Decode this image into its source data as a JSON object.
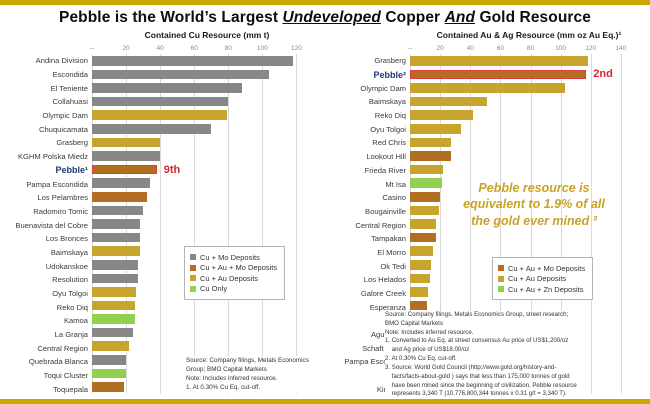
{
  "header": {
    "title_parts": {
      "p1": "Pebble is the World’s Largest ",
      "u1": "Undeveloped",
      "p2": " Copper ",
      "u2": "And",
      "p3": " Gold Resource"
    }
  },
  "colors": {
    "cu_mo": "#878787",
    "cu_au_mo": "#B26F21",
    "cu_au": "#C7A42E",
    "cu_only": "#92D050",
    "cu_au_zn": "#92D050",
    "highlight_border": "#E23B3E",
    "rank_red": "#D9262C",
    "pebble_blue": "#1F3A70",
    "band_gold": "#C9A804",
    "annotation_gold": "#C9A227"
  },
  "chart_data": [
    {
      "type": "bar",
      "orientation": "horizontal",
      "title": "Contained Cu Resource (mm t)",
      "xlabel": "Contained Cu Resource (mm t)",
      "ticks": [
        "--",
        "20",
        "40",
        "60",
        "80",
        "100",
        "120"
      ],
      "tick_values": [
        0,
        20,
        40,
        60,
        80,
        100,
        120
      ],
      "axis_span": 135,
      "items": [
        {
          "label": "Andina Division",
          "value": 118,
          "type": "cu_mo"
        },
        {
          "label": "Escondida",
          "value": 104,
          "type": "cu_mo"
        },
        {
          "label": "El Teniente",
          "value": 88,
          "type": "cu_mo"
        },
        {
          "label": "Collahuasi",
          "value": 80,
          "type": "cu_mo"
        },
        {
          "label": "Olympic Dam",
          "value": 79,
          "type": "cu_au"
        },
        {
          "label": "Chuquicamata",
          "value": 70,
          "type": "cu_mo"
        },
        {
          "label": "Grasberg",
          "value": 40,
          "type": "cu_au"
        },
        {
          "label": "KGHM Polska Miedz",
          "value": 40,
          "type": "cu_mo"
        },
        {
          "label": "Pebble¹",
          "value": 38,
          "type": "cu_au_mo",
          "highlight": true,
          "rank": "9th"
        },
        {
          "label": "Pampa Escondida",
          "value": 34,
          "type": "cu_mo"
        },
        {
          "label": "Los Pelambres",
          "value": 32,
          "type": "cu_au_mo"
        },
        {
          "label": "Radomiro Tomic",
          "value": 30,
          "type": "cu_mo"
        },
        {
          "label": "Buenavista del Cobre",
          "value": 28,
          "type": "cu_mo"
        },
        {
          "label": "Los Bronces",
          "value": 28,
          "type": "cu_mo"
        },
        {
          "label": "Baimskaya",
          "value": 28,
          "type": "cu_au"
        },
        {
          "label": "Udokanskoe",
          "value": 27,
          "type": "cu_mo"
        },
        {
          "label": "Resolution",
          "value": 27,
          "type": "cu_mo"
        },
        {
          "label": "Oyu Tolgoi",
          "value": 26,
          "type": "cu_au"
        },
        {
          "label": "Reko Diq",
          "value": 25,
          "type": "cu_au"
        },
        {
          "label": "Kamoa",
          "value": 25,
          "type": "cu_only"
        },
        {
          "label": "La Granja",
          "value": 24,
          "type": "cu_mo"
        },
        {
          "label": "Central Region",
          "value": 22,
          "type": "cu_au"
        },
        {
          "label": "Quebrada Blanca",
          "value": 20,
          "type": "cu_mo"
        },
        {
          "label": "Toqui Cluster",
          "value": 20,
          "type": "cu_only"
        },
        {
          "label": "Toquepala",
          "value": 19,
          "type": "cu_au_mo"
        }
      ],
      "legend": [
        {
          "label": "Cu + Mo Deposits",
          "type": "cu_mo"
        },
        {
          "label": "Cu + Au + Mo Deposits",
          "type": "cu_au_mo"
        },
        {
          "label": "Cu + Au Deposits",
          "type": "cu_au"
        },
        {
          "label": "Cu Only",
          "type": "cu_only"
        }
      ],
      "source_note": "Source: Company filings, Metals Economics\nGroup; BMO Capital Markets\nNote: Includes inferred resource.\n1. At 0.30% Cu Eq. cut-off."
    },
    {
      "type": "bar",
      "orientation": "horizontal",
      "title": "Contained Au & Ag Resource (mm oz Au Eq.)¹",
      "xlabel": "Contained Au & Ag Resource (mm oz Au Eq.)¹",
      "ticks": [
        "--",
        "20",
        "40",
        "60",
        "80",
        "100",
        "120",
        "140"
      ],
      "tick_values": [
        0,
        20,
        40,
        60,
        80,
        100,
        120,
        140
      ],
      "axis_span": 158,
      "items": [
        {
          "label": "Grasberg",
          "value": 118,
          "type": "cu_au"
        },
        {
          "label": "Pebble²",
          "value": 117,
          "type": "cu_au_mo",
          "highlight": true,
          "rank": "2nd"
        },
        {
          "label": "Olympic Dam",
          "value": 103,
          "type": "cu_au"
        },
        {
          "label": "Baimskaya",
          "value": 51,
          "type": "cu_au"
        },
        {
          "label": "Reko Diq",
          "value": 42,
          "type": "cu_au"
        },
        {
          "label": "Oyu Tolgoi",
          "value": 34,
          "type": "cu_au"
        },
        {
          "label": "Red Chris",
          "value": 27,
          "type": "cu_au"
        },
        {
          "label": "Lookout Hill",
          "value": 27,
          "type": "cu_au_mo"
        },
        {
          "label": "Frieda River",
          "value": 22,
          "type": "cu_au"
        },
        {
          "label": "Mt Isa",
          "value": 21,
          "type": "cu_au_zn"
        },
        {
          "label": "Casino",
          "value": 20,
          "type": "cu_au_mo"
        },
        {
          "label": "Bougainville",
          "value": 19,
          "type": "cu_au"
        },
        {
          "label": "Central Region",
          "value": 17,
          "type": "cu_au"
        },
        {
          "label": "Tampakan",
          "value": 17,
          "type": "cu_au_mo"
        },
        {
          "label": "El Morro",
          "value": 15,
          "type": "cu_au"
        },
        {
          "label": "Ok Tedi",
          "value": 14,
          "type": "cu_au"
        },
        {
          "label": "Los Helados",
          "value": 13,
          "type": "cu_au"
        },
        {
          "label": "Galore Creek",
          "value": 12,
          "type": "cu_au"
        },
        {
          "label": "Esperanza",
          "value": 11,
          "type": "cu_au_mo"
        },
        {
          "label": "Aitik",
          "value": 11,
          "type": "cu_au"
        },
        {
          "label": "Agua Rica",
          "value": 10.5,
          "type": "cu_au_mo"
        },
        {
          "label": "Schaft Creek",
          "value": 11,
          "type": "cu_au_mo"
        },
        {
          "label": "Pampa Escondida",
          "value": 10,
          "type": "cu_au"
        },
        {
          "label": "Jiama",
          "value": 10,
          "type": "cu_au"
        },
        {
          "label": "Kingking",
          "value": 9,
          "type": "cu_au"
        }
      ],
      "legend": [
        {
          "label": "Cu + Au + Mo Deposits",
          "type": "cu_au_mo"
        },
        {
          "label": "Cu + Au Deposits",
          "type": "cu_au"
        },
        {
          "label": "Cu + Au + Zn Deposits",
          "type": "cu_au_zn"
        }
      ],
      "annotation": "Pebble resource is\nequivalent to 1.9% of all\nthe gold ever mined ³",
      "source_note": "Source: Company filings, Metals Economics Group, street research;\nBMO Capital Markets\nNote: Includes inferred resource.\n1. Converted to Au Eq. at street consensus Au price of US$1,200/oz\n    and Ag price of US$18.00/oz\n2. At 0.30% Cu Eq. cut-off.\n3. Source: World Gold Council (http://www.gold.org/history-and-\n    facts/facts-about-gold ) says that less than 175,000 tonnes of gold\n    have been mined since the beginning of civilization. Pebble resource\n    represents 3,340 T (10,776,800,344 tonnes x 0.31 g/t = 3,340 T)."
    }
  ]
}
